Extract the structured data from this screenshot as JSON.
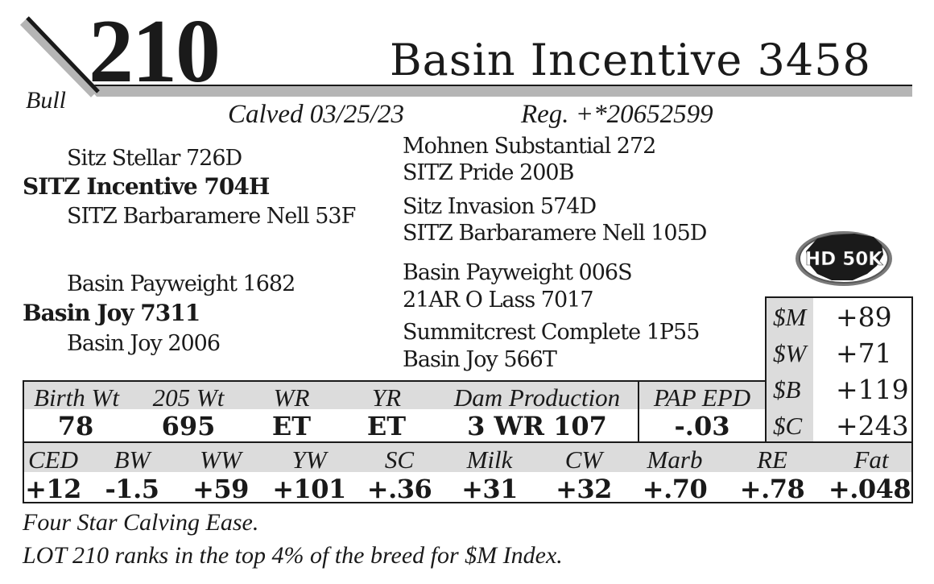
{
  "header": {
    "lot_number": "210",
    "animal_name": "Basin Incentive 3458",
    "sex": "Bull",
    "calved": "Calved 03/25/23",
    "registration": "Reg. +*20652599"
  },
  "pedigree": {
    "sire": "SITZ Incentive 704H",
    "sire_sire": "Sitz Stellar 726D",
    "sire_dam": "SITZ Barbaramere Nell 53F",
    "sire_sire_sire": "Mohnen Substantial 272",
    "sire_sire_dam": "SITZ Pride 200B",
    "sire_dam_sire": "Sitz Invasion 574D",
    "sire_dam_dam": "SITZ Barbaramere Nell 105D",
    "dam": "Basin Joy 7311",
    "dam_sire": "Basin Payweight 1682",
    "dam_dam": "Basin Joy 2006",
    "dam_sire_sire": "Basin Payweight 006S",
    "dam_sire_dam": "21AR O Lass 7017",
    "dam_dam_sire": "Summitcrest Complete 1P55",
    "dam_dam_dam": "Basin Joy 566T"
  },
  "badge": {
    "label": "HD 50K",
    "icon": "hd50k-badge-icon"
  },
  "indexes": [
    {
      "label": "$M",
      "value": "+89"
    },
    {
      "label": "$W",
      "value": "+71"
    },
    {
      "label": "$B",
      "value": "+119"
    },
    {
      "label": "$C",
      "value": "+243"
    }
  ],
  "performance": {
    "headers": [
      "Birth Wt",
      "205 Wt",
      "WR",
      "YR",
      "Dam Production",
      "PAP EPD"
    ],
    "values": [
      "78",
      "695",
      "ET",
      "ET",
      "3 WR 107",
      "-.03"
    ]
  },
  "epds": {
    "headers": [
      "CED",
      "BW",
      "WW",
      "YW",
      "SC",
      "Milk",
      "CW",
      "Marb",
      "RE",
      "Fat"
    ],
    "values": [
      "+12",
      "-1.5",
      "+59",
      "+101",
      "+.36",
      "+31",
      "+32",
      "+.70",
      "+.78",
      "+.048"
    ]
  },
  "notes": [
    "Four Star Calving Ease.",
    "LOT 210 ranks in the top 4% of the breed for $M Index."
  ],
  "colors": {
    "ink": "#1a1a1a",
    "header_gray": "#dcdcdc",
    "rule_gray": "#b5b5b5"
  }
}
